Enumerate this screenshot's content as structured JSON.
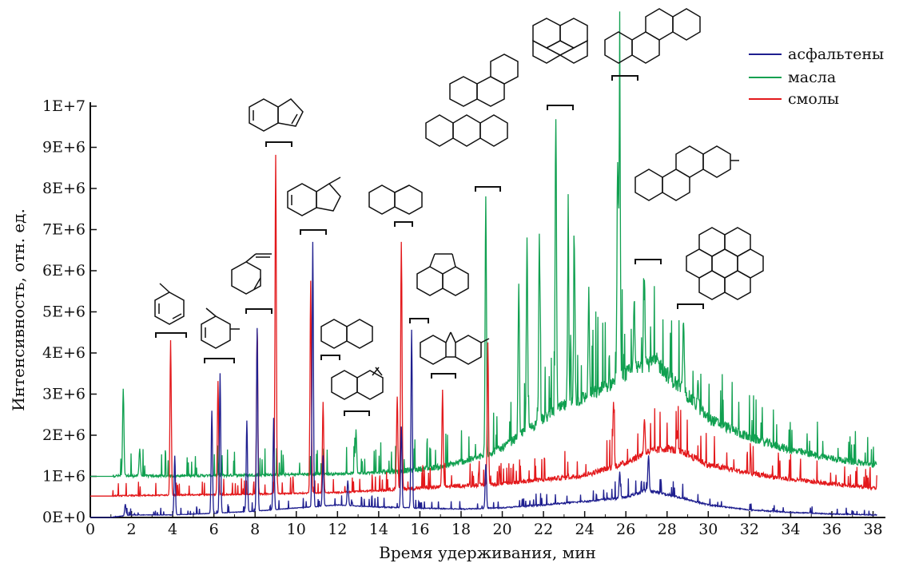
{
  "chart_data": {
    "type": "line",
    "title": "",
    "xlabel": "Время удерживания, мин",
    "ylabel": "Интенсивность, отн. ед.",
    "xlim": [
      0,
      38.6
    ],
    "ylim": [
      0,
      10300000
    ],
    "x_ticks": [
      0,
      2,
      4,
      6,
      8,
      10,
      12,
      14,
      16,
      18,
      20,
      22,
      24,
      26,
      28,
      30,
      32,
      34,
      36,
      38
    ],
    "x_tick_labels": [
      "0",
      "2",
      "4",
      "6",
      "8",
      "10",
      "12",
      "14",
      "16",
      "18",
      "20",
      "22",
      "24",
      "26",
      "28",
      "30",
      "32",
      "34",
      "36",
      "38"
    ],
    "y_ticks": [
      0,
      1000000,
      2000000,
      3000000,
      4000000,
      5000000,
      6000000,
      7000000,
      8000000,
      9000000,
      10000000
    ],
    "y_tick_labels": [
      "0E+0",
      "1E+6",
      "2E+6",
      "3E+6",
      "4E+6",
      "5E+6",
      "6E+6",
      "7E+6",
      "8E+6",
      "9E+6",
      "1E+7"
    ],
    "grid": false,
    "legend_position": "top-right",
    "series": [
      {
        "name": "асфальтены",
        "color": "#1f1f8f",
        "baseline": [
          [
            0,
            0
          ],
          [
            1,
            0
          ],
          [
            2,
            60000
          ],
          [
            4,
            60000
          ],
          [
            6,
            100000
          ],
          [
            8,
            150000
          ],
          [
            10,
            230000
          ],
          [
            12,
            300000
          ],
          [
            14,
            250000
          ],
          [
            16,
            220000
          ],
          [
            18,
            200000
          ],
          [
            20,
            230000
          ],
          [
            22,
            300000
          ],
          [
            24,
            380000
          ],
          [
            26,
            480000
          ],
          [
            27,
            650000
          ],
          [
            28,
            550000
          ],
          [
            30,
            300000
          ],
          [
            32,
            180000
          ],
          [
            34,
            120000
          ],
          [
            36,
            80000
          ],
          [
            38,
            60000
          ]
        ],
        "peaks": [
          [
            1.7,
            320000
          ],
          [
            4.1,
            1500000
          ],
          [
            5.9,
            2600000
          ],
          [
            6.3,
            3500000
          ],
          [
            7.6,
            2350000
          ],
          [
            8.1,
            4600000
          ],
          [
            8.9,
            2250000
          ],
          [
            10.8,
            6700000
          ],
          [
            11.3,
            1500000
          ],
          [
            12.5,
            900000
          ],
          [
            15.1,
            2200000
          ],
          [
            15.6,
            4550000
          ],
          [
            19.2,
            1300000
          ],
          [
            25.7,
            1100000
          ],
          [
            27.1,
            1500000
          ]
        ]
      },
      {
        "name": "масла",
        "color": "#10a050",
        "baseline": [
          [
            0,
            1000000
          ],
          [
            1,
            1000000
          ],
          [
            4,
            1000000
          ],
          [
            8,
            1020000
          ],
          [
            12,
            1050000
          ],
          [
            15,
            1100000
          ],
          [
            17,
            1200000
          ],
          [
            18,
            1320000
          ],
          [
            19,
            1450000
          ],
          [
            20,
            1650000
          ],
          [
            21,
            2000000
          ],
          [
            22,
            2350000
          ],
          [
            23,
            2650000
          ],
          [
            24,
            2850000
          ],
          [
            25,
            3100000
          ],
          [
            26,
            3400000
          ],
          [
            27,
            3650000
          ],
          [
            27.5,
            3700000
          ],
          [
            28,
            3400000
          ],
          [
            29,
            2900000
          ],
          [
            30,
            2350000
          ],
          [
            32,
            1900000
          ],
          [
            34,
            1600000
          ],
          [
            36,
            1400000
          ],
          [
            38,
            1250000
          ]
        ],
        "peaks": [
          [
            1.6,
            3100000
          ],
          [
            2.4,
            1650000
          ],
          [
            12.9,
            2100000
          ],
          [
            19.2,
            7750000
          ],
          [
            20.8,
            5700000
          ],
          [
            21.2,
            6700000
          ],
          [
            21.8,
            6800000
          ],
          [
            22.6,
            9750000
          ],
          [
            23.2,
            6500000
          ],
          [
            23.5,
            6500000
          ],
          [
            24.2,
            5400000
          ],
          [
            25.6,
            8600000
          ],
          [
            25.7,
            10300000
          ],
          [
            26.4,
            5300000
          ],
          [
            26.9,
            5800000
          ],
          [
            28.8,
            4800000
          ],
          [
            29.5,
            3200000
          ]
        ]
      },
      {
        "name": "смолы",
        "color": "#e3191c",
        "baseline": [
          [
            0,
            520000
          ],
          [
            1,
            520000
          ],
          [
            4,
            540000
          ],
          [
            8,
            560000
          ],
          [
            12,
            600000
          ],
          [
            14,
            650000
          ],
          [
            16,
            700000
          ],
          [
            18,
            750000
          ],
          [
            20,
            800000
          ],
          [
            22,
            900000
          ],
          [
            24,
            1000000
          ],
          [
            26,
            1300000
          ],
          [
            27,
            1550000
          ],
          [
            28,
            1650000
          ],
          [
            29,
            1500000
          ],
          [
            30,
            1250000
          ],
          [
            32,
            1050000
          ],
          [
            34,
            900000
          ],
          [
            36,
            800000
          ],
          [
            38,
            700000
          ]
        ],
        "peaks": [
          [
            3.9,
            4300000
          ],
          [
            6.2,
            3300000
          ],
          [
            8.1,
            4550000
          ],
          [
            9.0,
            8800000
          ],
          [
            10.7,
            5750000
          ],
          [
            11.3,
            2800000
          ],
          [
            14.9,
            2950000
          ],
          [
            15.1,
            6700000
          ],
          [
            17.1,
            3050000
          ],
          [
            19.3,
            4200000
          ],
          [
            25.4,
            2800000
          ],
          [
            26.9,
            2400000
          ],
          [
            28.5,
            2000000
          ]
        ]
      }
    ]
  },
  "legend": {
    "items": [
      {
        "label": "асфальтены",
        "color": "#1f1f8f"
      },
      {
        "label": "масла",
        "color": "#10a050"
      },
      {
        "label": "смолы",
        "color": "#e3191c"
      }
    ]
  }
}
